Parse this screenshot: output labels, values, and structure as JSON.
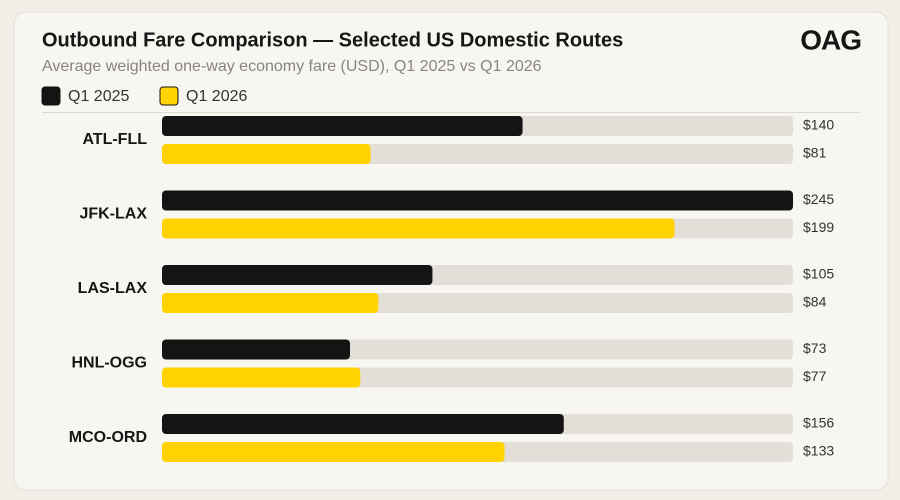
{
  "brand": "OAG",
  "chart_data": {
    "type": "bar",
    "orientation": "horizontal",
    "title": "Outbound Fare Comparison — Selected US Domestic Routes",
    "subtitle": "Average weighted one-way economy fare (USD), Q1 2025 vs Q1 2026",
    "categories": [
      "ATL-FLL",
      "JFK-LAX",
      "LAS-LAX",
      "HNL-OGG",
      "MCO-ORD"
    ],
    "track_color": "#e3dfd8",
    "series": [
      {
        "name": "Q1 2025",
        "color": "#141414",
        "values": [
          140,
          245,
          105,
          73,
          156
        ],
        "value_labels": [
          "$140",
          "$245",
          "$105",
          "$73",
          "$156"
        ]
      },
      {
        "name": "Q1 2026",
        "color": "#ffd200",
        "values": [
          81,
          199,
          84,
          77,
          133
        ],
        "value_labels": [
          "$81",
          "$199",
          "$84",
          "$77",
          "$133"
        ]
      }
    ]
  }
}
